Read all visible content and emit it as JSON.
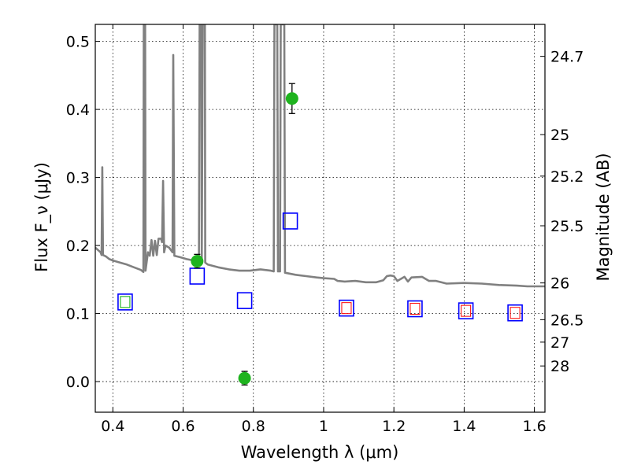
{
  "chart_data": {
    "type": "scatter",
    "xlabel": "Wavelength λ (μm)",
    "ylabel": "Flux F_ν (μJy)",
    "y2label": "Magnitude (AB)",
    "xlim": [
      0.35,
      1.63
    ],
    "ylim": [
      -0.045,
      0.525
    ],
    "x_ticks": [
      "0.4",
      "0.6",
      "0.8",
      "1",
      "1.2",
      "1.4",
      "1.6"
    ],
    "x_tick_values": [
      0.4,
      0.6,
      0.8,
      1.0,
      1.2,
      1.4,
      1.6
    ],
    "y_ticks": [
      "0.0",
      "0.1",
      "0.2",
      "0.3",
      "0.4",
      "0.5"
    ],
    "y_tick_values": [
      0.0,
      0.1,
      0.2,
      0.3,
      0.4,
      0.5
    ],
    "y2_ticks": [
      {
        "label": "24.7",
        "flux": 0.478
      },
      {
        "label": "25",
        "flux": 0.363
      },
      {
        "label": "25.2",
        "flux": 0.302
      },
      {
        "label": "25.5",
        "flux": 0.229
      },
      {
        "label": "26",
        "flux": 0.145
      },
      {
        "label": "26.5",
        "flux": 0.091
      },
      {
        "label": "27",
        "flux": 0.058
      },
      {
        "label": "28",
        "flux": 0.023
      }
    ],
    "grid": true,
    "colors": {
      "model": "#808080",
      "observed": "#1fb31f",
      "model_photometry": "#0000ff",
      "inner_red": "#ff0000",
      "inner_green": "#00aa00"
    },
    "model_spectrum": [
      [
        0.35,
        0.197
      ],
      [
        0.365,
        0.19
      ],
      [
        0.368,
        0.186
      ],
      [
        0.37,
        0.315
      ],
      [
        0.372,
        0.186
      ],
      [
        0.38,
        0.184
      ],
      [
        0.39,
        0.18
      ],
      [
        0.4,
        0.178
      ],
      [
        0.42,
        0.175
      ],
      [
        0.44,
        0.172
      ],
      [
        0.46,
        0.168
      ],
      [
        0.48,
        0.164
      ],
      [
        0.487,
        0.161
      ],
      [
        0.488,
        0.525
      ],
      [
        0.492,
        0.525
      ],
      [
        0.493,
        0.163
      ],
      [
        0.5,
        0.19
      ],
      [
        0.505,
        0.185
      ],
      [
        0.51,
        0.208
      ],
      [
        0.515,
        0.185
      ],
      [
        0.52,
        0.207
      ],
      [
        0.525,
        0.186
      ],
      [
        0.53,
        0.21
      ],
      [
        0.537,
        0.21
      ],
      [
        0.54,
        0.205
      ],
      [
        0.543,
        0.295
      ],
      [
        0.546,
        0.19
      ],
      [
        0.55,
        0.2
      ],
      [
        0.56,
        0.197
      ],
      [
        0.57,
        0.19
      ],
      [
        0.572,
        0.48
      ],
      [
        0.575,
        0.185
      ],
      [
        0.59,
        0.183
      ],
      [
        0.61,
        0.18
      ],
      [
        0.63,
        0.178
      ],
      [
        0.64,
        0.178
      ],
      [
        0.645,
        0.178
      ],
      [
        0.647,
        0.525
      ],
      [
        0.652,
        0.525
      ],
      [
        0.653,
        0.175
      ],
      [
        0.656,
        0.525
      ],
      [
        0.662,
        0.525
      ],
      [
        0.663,
        0.175
      ],
      [
        0.67,
        0.172
      ],
      [
        0.7,
        0.168
      ],
      [
        0.73,
        0.165
      ],
      [
        0.76,
        0.163
      ],
      [
        0.79,
        0.163
      ],
      [
        0.82,
        0.165
      ],
      [
        0.85,
        0.163
      ],
      [
        0.858,
        0.162
      ],
      [
        0.86,
        0.525
      ],
      [
        0.868,
        0.525
      ],
      [
        0.87,
        0.162
      ],
      [
        0.876,
        0.162
      ],
      [
        0.878,
        0.525
      ],
      [
        0.888,
        0.525
      ],
      [
        0.89,
        0.16
      ],
      [
        0.92,
        0.157
      ],
      [
        0.95,
        0.155
      ],
      [
        0.98,
        0.153
      ],
      [
        1.0,
        0.152
      ],
      [
        1.03,
        0.151
      ],
      [
        1.04,
        0.148
      ],
      [
        1.06,
        0.147
      ],
      [
        1.09,
        0.148
      ],
      [
        1.12,
        0.146
      ],
      [
        1.15,
        0.146
      ],
      [
        1.17,
        0.149
      ],
      [
        1.18,
        0.155
      ],
      [
        1.19,
        0.156
      ],
      [
        1.2,
        0.155
      ],
      [
        1.21,
        0.148
      ],
      [
        1.23,
        0.154
      ],
      [
        1.24,
        0.147
      ],
      [
        1.25,
        0.153
      ],
      [
        1.28,
        0.154
      ],
      [
        1.3,
        0.148
      ],
      [
        1.32,
        0.148
      ],
      [
        1.35,
        0.144
      ],
      [
        1.4,
        0.145
      ],
      [
        1.45,
        0.144
      ],
      [
        1.5,
        0.142
      ],
      [
        1.55,
        0.141
      ],
      [
        1.58,
        0.14
      ],
      [
        1.63,
        0.14
      ]
    ],
    "observed": [
      {
        "x": 0.64,
        "y": 0.177,
        "err": 0.01
      },
      {
        "x": 0.775,
        "y": 0.005,
        "err": 0.01
      },
      {
        "x": 0.91,
        "y": 0.416,
        "err": 0.022
      }
    ],
    "model_photometry": [
      {
        "x": 0.435,
        "y": 0.117,
        "inner": "green"
      },
      {
        "x": 0.64,
        "y": 0.155
      },
      {
        "x": 0.775,
        "y": 0.119
      },
      {
        "x": 0.905,
        "y": 0.236
      },
      {
        "x": 1.065,
        "y": 0.108,
        "inner": "red"
      },
      {
        "x": 1.26,
        "y": 0.107,
        "inner": "red"
      },
      {
        "x": 1.405,
        "y": 0.104,
        "inner": "red"
      },
      {
        "x": 1.545,
        "y": 0.101,
        "inner": "red"
      }
    ]
  }
}
